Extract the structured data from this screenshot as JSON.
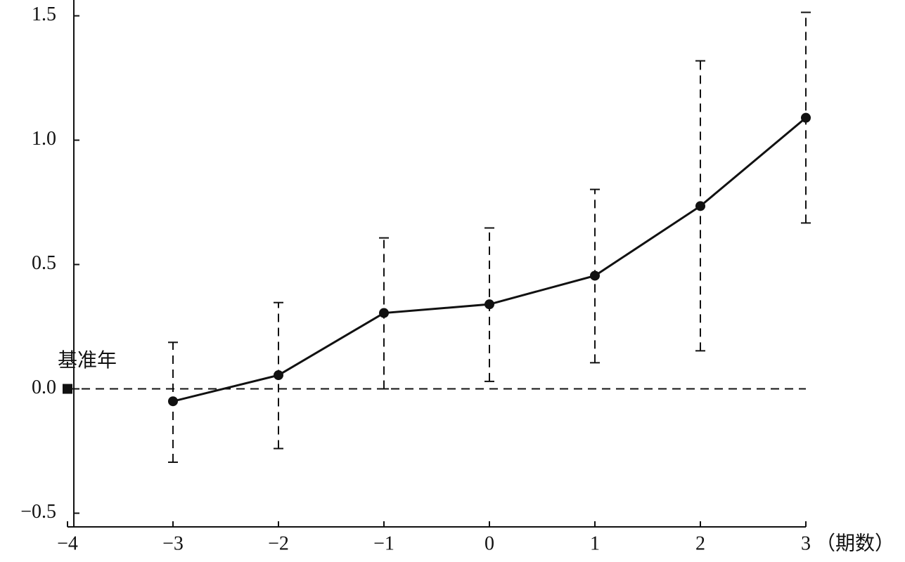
{
  "chart_data": {
    "type": "line",
    "x": [
      -3,
      -2,
      -1,
      0,
      1,
      2,
      3
    ],
    "series": [
      {
        "color": "#111111",
        "values": [
          -0.05,
          0.055,
          0.305,
          0.34,
          0.455,
          0.735,
          1.09
        ],
        "lower": [
          -0.295,
          -0.24,
          0.0,
          0.03,
          0.105,
          0.153,
          0.667
        ],
        "upper": [
          0.187,
          0.347,
          0.607,
          0.647,
          0.802,
          1.319,
          1.514
        ]
      }
    ],
    "base_point": {
      "x": -4,
      "y": 0,
      "label": "基准年"
    },
    "reference_line": 0,
    "x_label": "（期数）",
    "xlim": [
      -4,
      3
    ],
    "ylim": [
      -0.555,
      1.56
    ],
    "xticks": [
      {
        "value": -4,
        "label": "−4"
      },
      {
        "value": -3,
        "label": "−3"
      },
      {
        "value": -2,
        "label": "−2"
      },
      {
        "value": -1,
        "label": "−1"
      },
      0,
      1,
      2,
      3
    ],
    "yticks": [
      {
        "value": -0.5,
        "label": "−0.5"
      },
      {
        "value": 0,
        "label": "0.0"
      },
      0.5,
      {
        "value": 1,
        "label": "1.0"
      },
      1.5
    ]
  }
}
